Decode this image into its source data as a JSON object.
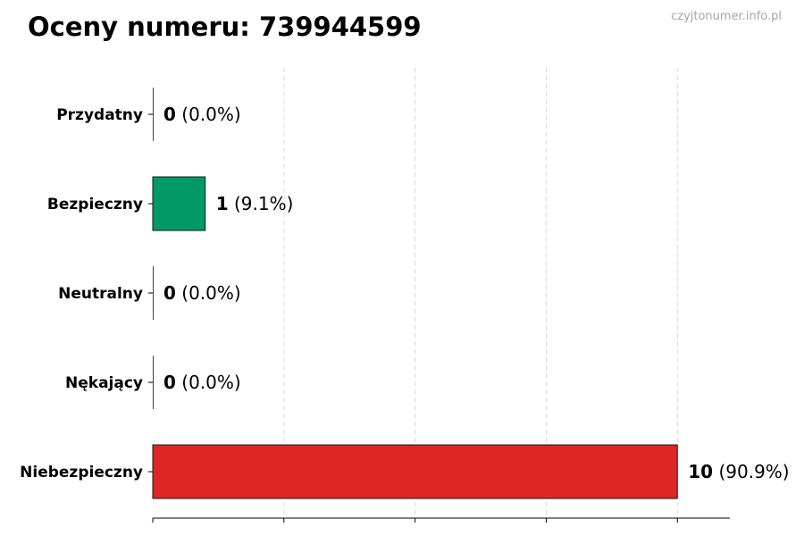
{
  "title": "Oceny numeru: 739944599",
  "watermark": "czyjtonumer.info.pl",
  "chart_data": {
    "type": "bar",
    "orientation": "horizontal",
    "categories": [
      "Przydatny",
      "Bezpieczny",
      "Neutralny",
      "Nękający",
      "Niebezpieczny"
    ],
    "values": [
      0,
      1,
      0,
      0,
      10
    ],
    "percent_labels": [
      "(0.0%)",
      "(9.1%)",
      "(0.0%)",
      "(0.0%)",
      "(90.9%)"
    ],
    "colors": [
      "#555555",
      "#009966",
      "#555555",
      "#555555",
      "#dd2626"
    ],
    "xlim": [
      0,
      11
    ],
    "x_gridlines": [
      0,
      2.5,
      5,
      7.5,
      10
    ],
    "grid": "x-dashed",
    "title": "Oceny numeru: 739944599",
    "xlabel": "",
    "ylabel": ""
  }
}
